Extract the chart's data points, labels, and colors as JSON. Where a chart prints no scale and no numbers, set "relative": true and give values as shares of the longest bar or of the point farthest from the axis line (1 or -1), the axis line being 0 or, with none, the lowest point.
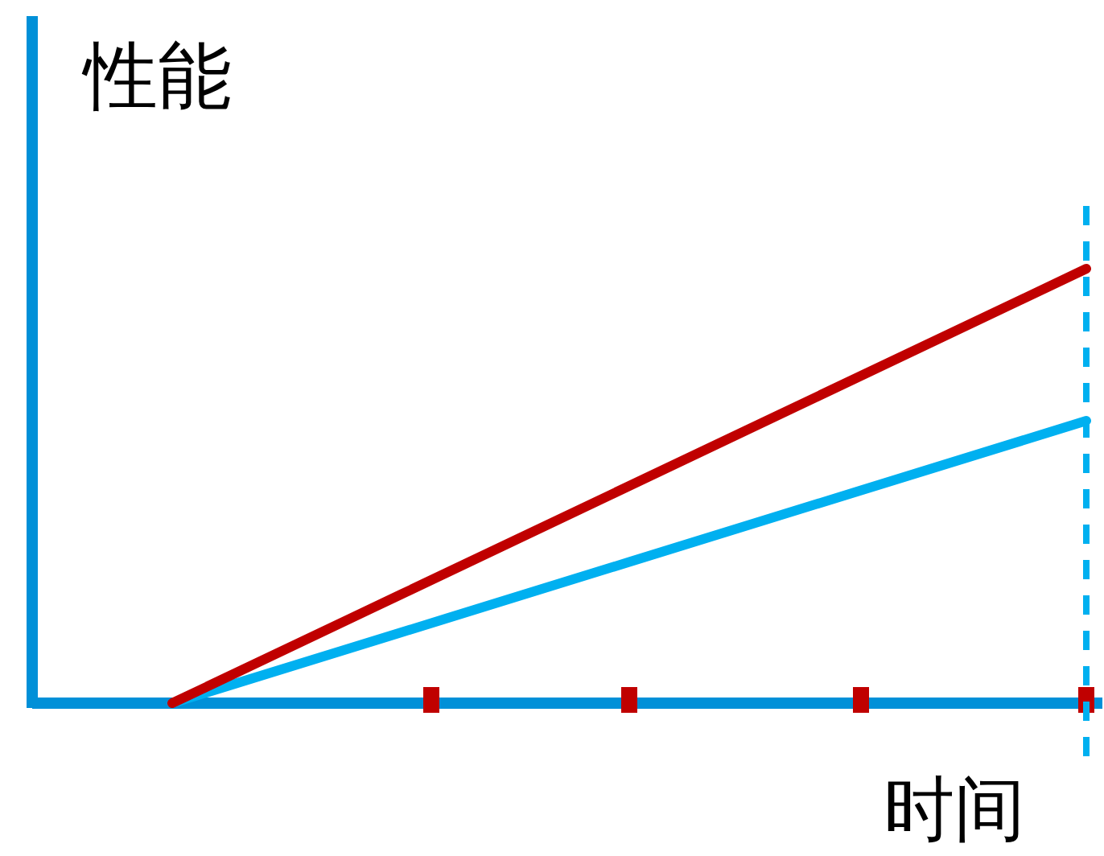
{
  "chart_data": {
    "type": "line",
    "relative": true,
    "ylabel": "性能",
    "xlabel": "时间",
    "categories": [
      null,
      null,
      null,
      null,
      null
    ],
    "series": [
      {
        "color": "#c00000",
        "values": [
          0,
          0.25,
          0.5,
          0.75,
          1
        ]
      },
      {
        "color": "#00b0f0",
        "values": [
          0,
          0.1625,
          0.325,
          0.4875,
          0.65
        ]
      }
    ],
    "marker": "none",
    "line_style": "solid"
  }
}
